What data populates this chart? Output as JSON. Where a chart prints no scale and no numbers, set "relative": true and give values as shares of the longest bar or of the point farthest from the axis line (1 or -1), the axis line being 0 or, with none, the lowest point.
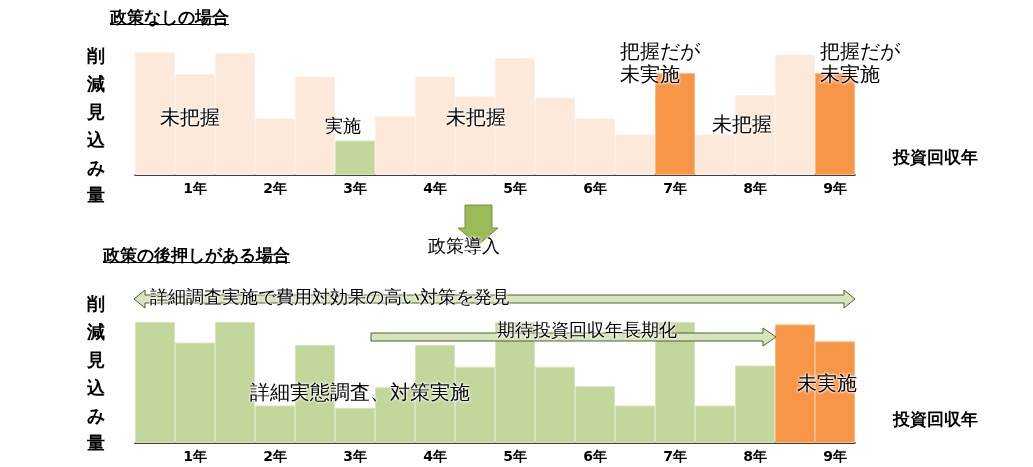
{
  "chart_data": [
    {
      "type": "bar",
      "title": "政策なしの場合",
      "ylabel": "削減見込み量",
      "xlabel": "投資回収年",
      "relative": true,
      "categories": [
        null,
        "1年",
        null,
        "2年",
        null,
        "3年",
        null,
        "4年",
        null,
        "5年",
        null,
        "6年",
        null,
        "7年",
        null,
        "8年",
        null,
        "9年"
      ],
      "values": [
        1.0,
        0.82,
        0.99,
        0.46,
        0.8,
        0.28,
        0.48,
        0.8,
        0.64,
        0.95,
        0.63,
        0.46,
        0.33,
        0.83,
        0.33,
        0.65,
        0.98,
        0.83
      ],
      "colors": [
        "#fde9d9",
        "#fde9d9",
        "#fde9d9",
        "#fde9d9",
        "#fde9d9",
        "#c3d69b",
        "#fde9d9",
        "#fde9d9",
        "#fde9d9",
        "#fde9d9",
        "#fde9d9",
        "#fde9d9",
        "#fde9d9",
        "#f79646",
        "#fde9d9",
        "#fde9d9",
        "#fde9d9",
        "#f79646"
      ],
      "annotations": [
        "未把握",
        "実施",
        "未把握",
        "把握だが未実施",
        "未把握",
        "把握だが未実施"
      ]
    },
    {
      "type": "bar",
      "title": "政策の後押しがある場合",
      "ylabel": "削減見込み量",
      "xlabel": "投資回収年",
      "relative": true,
      "categories": [
        null,
        "1年",
        null,
        "2年",
        null,
        "3年",
        null,
        "4年",
        null,
        "5年",
        null,
        "6年",
        null,
        "7年",
        null,
        "8年",
        null,
        "9年"
      ],
      "values": [
        1.0,
        0.83,
        1.0,
        0.31,
        0.81,
        0.29,
        0.46,
        0.81,
        0.63,
        1.0,
        0.63,
        0.47,
        0.31,
        1.0,
        0.31,
        0.64,
        0.98,
        0.84
      ],
      "colors": [
        "#c3d69b",
        "#c3d69b",
        "#c3d69b",
        "#c3d69b",
        "#c3d69b",
        "#c3d69b",
        "#c3d69b",
        "#c3d69b",
        "#c3d69b",
        "#c3d69b",
        "#c3d69b",
        "#c3d69b",
        "#c3d69b",
        "#c3d69b",
        "#c3d69b",
        "#c3d69b",
        "#f79646",
        "#f79646"
      ],
      "annotations": [
        "政策導入",
        "詳細調査実施で費用対効果の高い対策を発見",
        "期待投資回収年長期化",
        "詳細実態調査、対策実施",
        "未実施"
      ]
    }
  ]
}
